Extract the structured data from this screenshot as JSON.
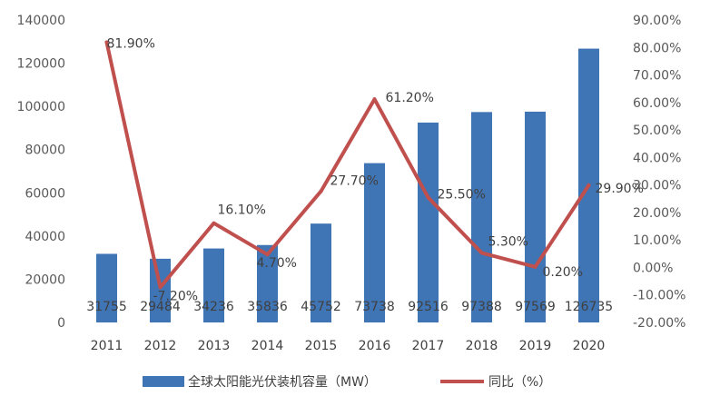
{
  "chart_data": {
    "type": "bar+line",
    "title": "",
    "categories": [
      "2011",
      "2012",
      "2013",
      "2014",
      "2015",
      "2016",
      "2017",
      "2018",
      "2019",
      "2020"
    ],
    "series": [
      {
        "name": "全球太阳能光伏装机容量（MW）",
        "type": "bar",
        "axis": "left",
        "values": [
          31755,
          29484,
          34236,
          35836,
          45752,
          73738,
          92516,
          97388,
          97569,
          126735
        ],
        "labels": [
          "31755",
          "29484",
          "34236",
          "35836",
          "45752",
          "73738",
          "92516",
          "97388",
          "97569",
          "126735"
        ],
        "color": "#3f74b5"
      },
      {
        "name": "同比（%）",
        "type": "line",
        "axis": "right",
        "values": [
          81.9,
          -7.2,
          16.1,
          4.7,
          27.7,
          61.2,
          25.5,
          5.3,
          0.2,
          29.9
        ],
        "labels": [
          "81.90%",
          "-7.20%",
          "16.10%",
          "4.70%",
          "27.70%",
          "61.20%",
          "25.50%",
          "5.30%",
          "0.20%",
          "29.90%"
        ],
        "color": "#c0504d"
      }
    ],
    "left_axis": {
      "ylim": [
        0,
        140000
      ],
      "ticks": [
        "0",
        "20000",
        "40000",
        "60000",
        "80000",
        "100000",
        "120000",
        "140000"
      ]
    },
    "right_axis": {
      "ylim": [
        -20,
        90
      ],
      "ticks": [
        "-20.00%",
        "-10.00%",
        "0.00%",
        "10.00%",
        "20.00%",
        "30.00%",
        "40.00%",
        "50.00%",
        "60.00%",
        "70.00%",
        "80.00%",
        "90.00%"
      ]
    },
    "grid": false,
    "legend": "bottom"
  }
}
